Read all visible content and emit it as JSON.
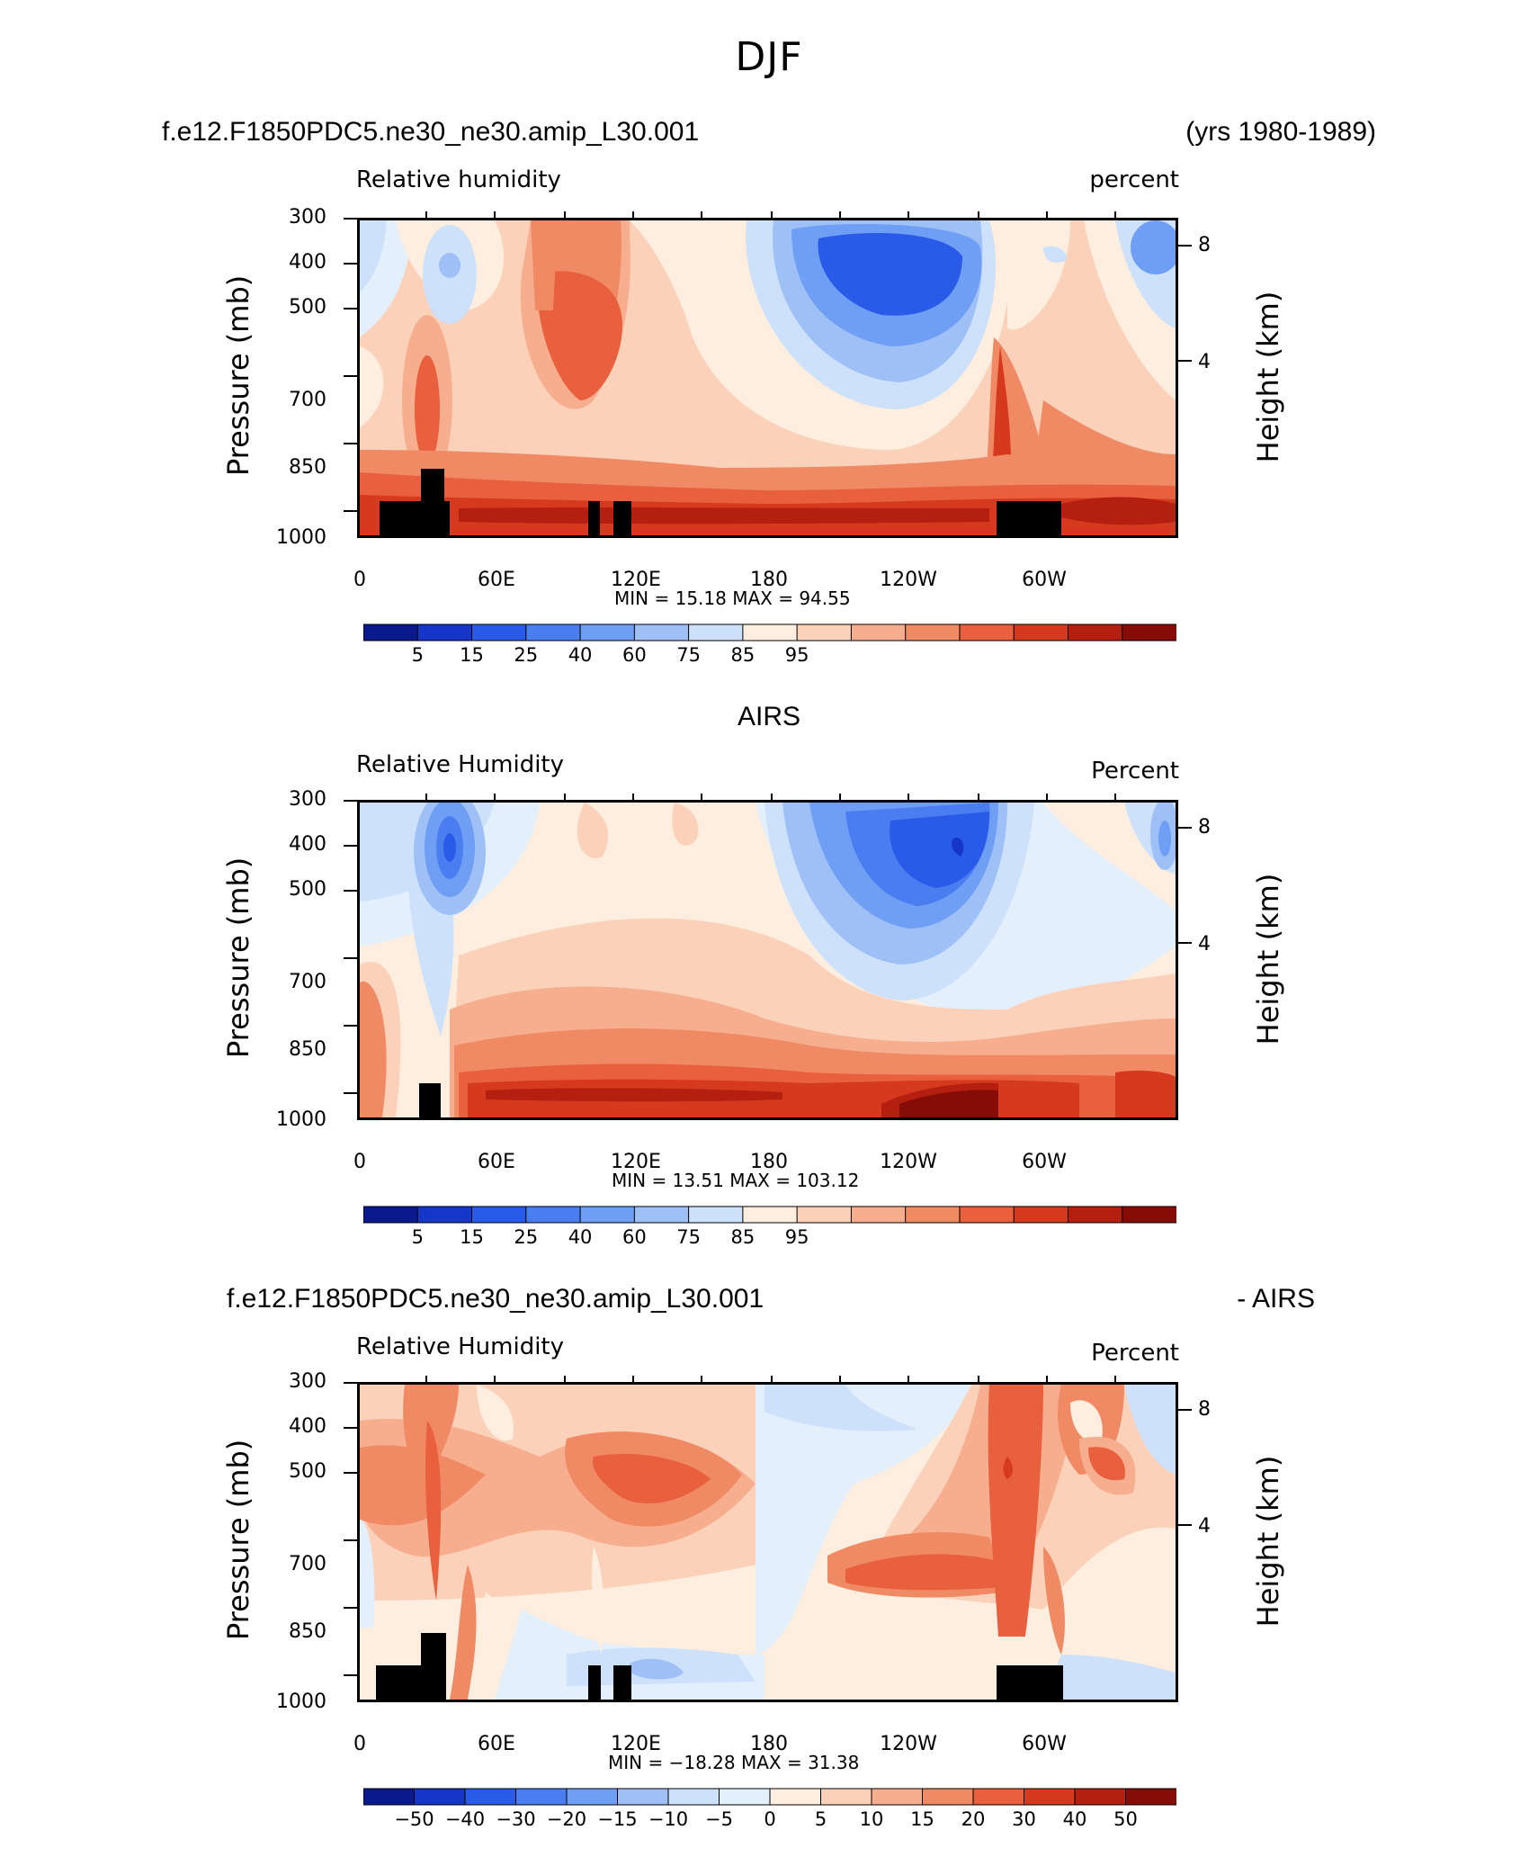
{
  "figure": {
    "title": "DJF"
  },
  "chart_data": [
    {
      "type": "heatmap",
      "header_left": "f.e12.F1850PDC5.ne30_ne30.amip_L30.001",
      "header_right": "(yrs 1980-1989)",
      "field_label": "Relative humidity",
      "units_label": "percent",
      "ylabel": "Pressure (mb)",
      "y2label": "Height (km)",
      "y_ticks": [
        "300",
        "400",
        "500",
        "",
        "700",
        "850",
        "1000"
      ],
      "y2_ticks": [
        "8",
        "4"
      ],
      "x_ticks": [
        "0",
        "60E",
        "120E",
        "180",
        "120W",
        "60W"
      ],
      "min": "15.18",
      "max": "94.55",
      "minmax_text": "MIN =   15.18   MAX =   94.55",
      "colorbar_labels": [
        "5",
        "15",
        "25",
        "40",
        "60",
        "75",
        "85",
        "95"
      ],
      "colorbar_colors": [
        "#0a1a8c",
        "#1536c7",
        "#2a5be8",
        "#4a7ef0",
        "#6f9ff4",
        "#9ec0f7",
        "#cde1fb",
        "#fdeedf",
        "#fbd2b9",
        "#f6ae8f",
        "#f08a64",
        "#e8603d",
        "#d53a1e",
        "#b41f10",
        "#860c07"
      ]
    },
    {
      "type": "heatmap",
      "header_center": "AIRS",
      "field_label": "Relative Humidity",
      "units_label": "Percent",
      "ylabel": "Pressure (mb)",
      "y2label": "Height (km)",
      "y_ticks": [
        "300",
        "400",
        "500",
        "",
        "700",
        "850",
        "1000"
      ],
      "y2_ticks": [
        "8",
        "4"
      ],
      "x_ticks": [
        "0",
        "60E",
        "120E",
        "180",
        "120W",
        "60W"
      ],
      "min": "13.51",
      "max": "103.12",
      "minmax_text": "MIN =   13.51   MAX =  103.12",
      "colorbar_labels": [
        "5",
        "15",
        "25",
        "40",
        "60",
        "75",
        "85",
        "95"
      ],
      "colorbar_colors": [
        "#0a1a8c",
        "#1536c7",
        "#2a5be8",
        "#4a7ef0",
        "#6f9ff4",
        "#9ec0f7",
        "#cde1fb",
        "#fdeedf",
        "#fbd2b9",
        "#f6ae8f",
        "#f08a64",
        "#e8603d",
        "#d53a1e",
        "#b41f10",
        "#860c07"
      ]
    },
    {
      "type": "heatmap",
      "header_left": "f.e12.F1850PDC5.ne30_ne30.amip_L30.001",
      "header_right": "- AIRS",
      "field_label": "Relative Humidity",
      "units_label": "Percent",
      "ylabel": "Pressure (mb)",
      "y2label": "Height (km)",
      "y_ticks": [
        "300",
        "400",
        "500",
        "",
        "700",
        "850",
        "1000"
      ],
      "y2_ticks": [
        "8",
        "4"
      ],
      "x_ticks": [
        "0",
        "60E",
        "120E",
        "180",
        "120W",
        "60W"
      ],
      "min": "-18.28",
      "max": "31.38",
      "minmax_text": "MIN = −18.28   MAX =   31.38",
      "colorbar_labels": [
        "−50",
        "−40",
        "−30",
        "−20",
        "−15",
        "−10",
        "−5",
        "0",
        "5",
        "10",
        "15",
        "20",
        "30",
        "40",
        "50"
      ],
      "colorbar_colors": [
        "#0a1a8c",
        "#1536c7",
        "#2a5be8",
        "#4a7ef0",
        "#6f9ff4",
        "#9ec0f7",
        "#cde1fb",
        "#e4effc",
        "#fdeedf",
        "#fbd2b9",
        "#f6ae8f",
        "#f08a64",
        "#e8603d",
        "#d53a1e",
        "#b41f10",
        "#860c07"
      ]
    }
  ]
}
